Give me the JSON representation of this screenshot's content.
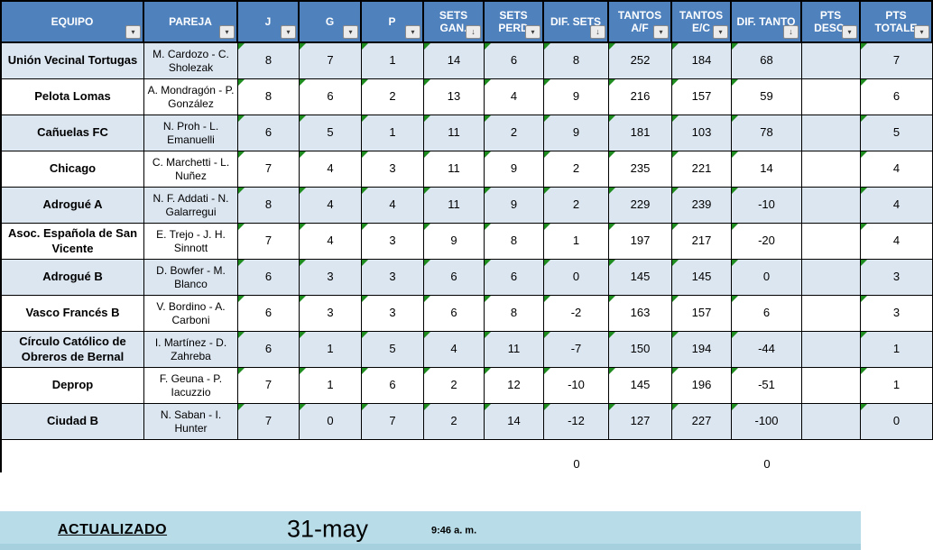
{
  "colors": {
    "header_bg": "#4F81BD",
    "header_text": "#FFFFFF",
    "row_stripe": "#DCE6F1",
    "row_plain": "#FFFFFF",
    "grid_border": "#000000",
    "flag_green": "#1E8C1E",
    "banner_bg": "#B8DDE8",
    "banner_edge": "#A6D0DE"
  },
  "table": {
    "columns": [
      {
        "label": "EQUIPO",
        "sorted": false
      },
      {
        "label": "PAREJA",
        "sorted": false
      },
      {
        "label": "J",
        "sorted": false
      },
      {
        "label": "G",
        "sorted": false
      },
      {
        "label": "P",
        "sorted": false
      },
      {
        "label": "SETS GAN.",
        "sorted": true
      },
      {
        "label": "SETS PERD",
        "sorted": false
      },
      {
        "label": "DIF. SETS",
        "sorted": true
      },
      {
        "label": "TANTOS A/F",
        "sorted": false
      },
      {
        "label": "TANTOS E/C",
        "sorted": false
      },
      {
        "label": "DIF. TANTO",
        "sorted": true
      },
      {
        "label": "PTS DESC.",
        "sorted": false
      },
      {
        "label": "PTS TOTALE",
        "sorted": false
      }
    ],
    "rows": [
      {
        "equipo": "Unión Vecinal Tortugas",
        "pareja": "M. Cardozo - C. Sholezak",
        "values": [
          "8",
          "7",
          "1",
          "14",
          "6",
          "8",
          "252",
          "184",
          "68",
          "",
          "7"
        ]
      },
      {
        "equipo": "Pelota Lomas",
        "pareja": "A. Mondragón - P. González",
        "values": [
          "8",
          "6",
          "2",
          "13",
          "4",
          "9",
          "216",
          "157",
          "59",
          "",
          "6"
        ]
      },
      {
        "equipo": "Cañuelas FC",
        "pareja": "N. Proh - L. Emanuelli",
        "values": [
          "6",
          "5",
          "1",
          "11",
          "2",
          "9",
          "181",
          "103",
          "78",
          "",
          "5"
        ]
      },
      {
        "equipo": "Chicago",
        "pareja": "C. Marchetti - L. Nuñez",
        "values": [
          "7",
          "4",
          "3",
          "11",
          "9",
          "2",
          "235",
          "221",
          "14",
          "",
          "4"
        ]
      },
      {
        "equipo": "Adrogué A",
        "pareja": "N. F. Addati - N. Galarregui",
        "values": [
          "8",
          "4",
          "4",
          "11",
          "9",
          "2",
          "229",
          "239",
          "-10",
          "",
          "4"
        ]
      },
      {
        "equipo": "Asoc. Española de San Vicente",
        "pareja": "E. Trejo - J. H. Sinnott",
        "values": [
          "7",
          "4",
          "3",
          "9",
          "8",
          "1",
          "197",
          "217",
          "-20",
          "",
          "4"
        ]
      },
      {
        "equipo": "Adrogué B",
        "pareja": "D. Bowfer - M. Blanco",
        "values": [
          "6",
          "3",
          "3",
          "6",
          "6",
          "0",
          "145",
          "145",
          "0",
          "",
          "3"
        ]
      },
      {
        "equipo": "Vasco Francés B",
        "pareja": "V. Bordino - A. Carboni",
        "values": [
          "6",
          "3",
          "3",
          "6",
          "8",
          "-2",
          "163",
          "157",
          "6",
          "",
          "3"
        ]
      },
      {
        "equipo": "Círculo Católico de Obreros de Bernal",
        "pareja": "I. Martínez - D. Zahreba",
        "values": [
          "6",
          "1",
          "5",
          "4",
          "11",
          "-7",
          "150",
          "194",
          "-44",
          "",
          "1"
        ]
      },
      {
        "equipo": "Deprop",
        "pareja": "F. Geuna - P. Iacuzzio",
        "values": [
          "7",
          "1",
          "6",
          "2",
          "12",
          "-10",
          "145",
          "196",
          "-51",
          "",
          "1"
        ]
      },
      {
        "equipo": "Ciudad B",
        "pareja": "N. Saban - I. Hunter",
        "values": [
          "7",
          "0",
          "7",
          "2",
          "14",
          "-12",
          "127",
          "227",
          "-100",
          "",
          "0"
        ]
      }
    ],
    "footer": {
      "dif_sets_total": "0",
      "dif_tanto_total": "0"
    }
  },
  "banner": {
    "label": "ACTUALIZADO",
    "date": "31-may",
    "time": "9:46 a. m."
  }
}
